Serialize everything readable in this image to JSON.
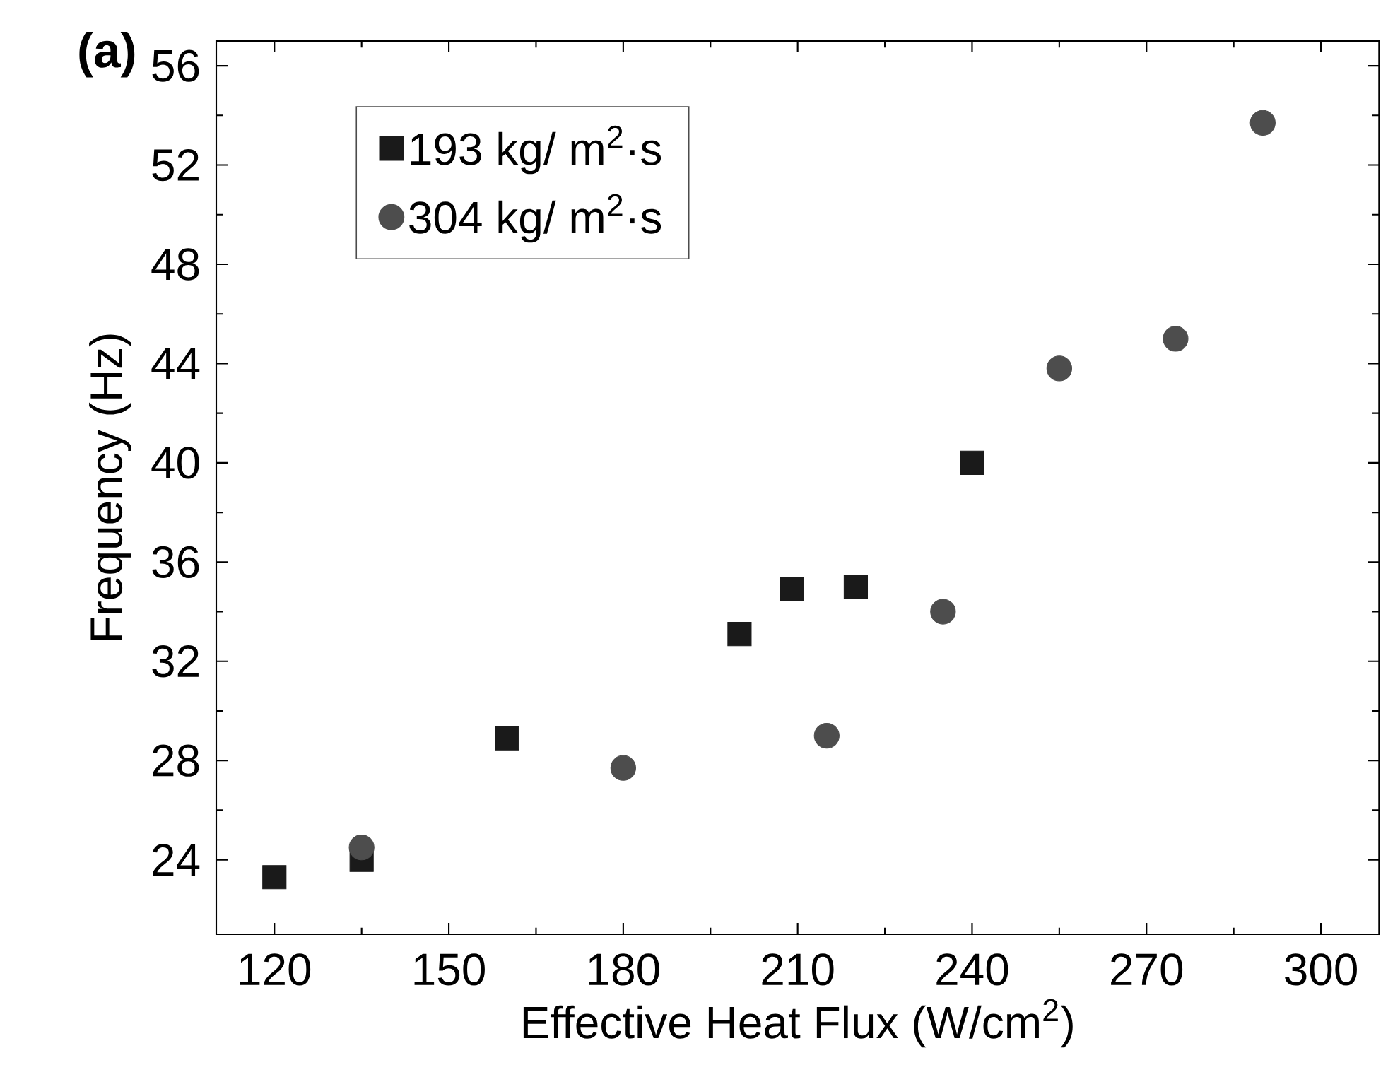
{
  "chart_data": {
    "type": "scatter",
    "title": "(a)",
    "xlabel": "Effective Heat Flux (W/cm$^{2}$)",
    "ylabel": "Frequency (Hz)",
    "xlim": [
      110,
      310
    ],
    "xticks": [
      120,
      150,
      180,
      210,
      240,
      270,
      300
    ],
    "ylim": [
      21,
      57
    ],
    "yticks": [
      24,
      28,
      32,
      36,
      40,
      44,
      48,
      52,
      56
    ],
    "legend": "top left",
    "grid": false,
    "series": [
      {
        "name": "193 kg/ m$^{2}$·s",
        "color": "#1a1a1a",
        "marker": "square",
        "x": [
          120,
          135,
          160,
          200,
          209,
          220,
          240
        ],
        "values": [
          23.3,
          24.0,
          28.9,
          33.1,
          34.9,
          35.0,
          40.0
        ]
      },
      {
        "name": "304 kg/ m$^{2}$·s",
        "color": "#4d4d4d",
        "marker": "circle",
        "x": [
          135,
          180,
          215,
          235,
          255,
          275,
          290
        ],
        "values": [
          24.5,
          27.7,
          29.0,
          34.0,
          43.8,
          45.0,
          53.7
        ]
      }
    ]
  }
}
